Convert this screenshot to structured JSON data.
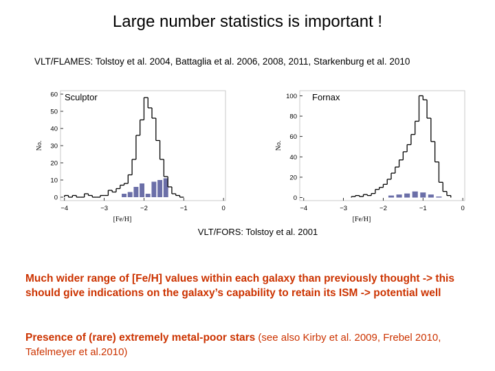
{
  "slide": {
    "title": "Large number statistics is important !",
    "references": "VLT/FLAMES: Tolstoy et al. 2004, Battaglia et al. 2006, 2008, 2011, Starkenburg et al. 2010",
    "caption": "VLT/FORS: Tolstoy et al. 2001",
    "paragraph1": "Much wider range of [Fe/H] values within each galaxy than previously thought -> this should give indications on the galaxy’s capability to retain its ISM -> potential well",
    "paragraph2_bold": "Presence of (rare) extremely metal-poor stars",
    "paragraph2_normal": " (see also Kirby et al. 2009, Frebel 2010, Tafelmeyer et al.2010)"
  },
  "colors": {
    "text_accent": "#cc3300",
    "bar_fill": "#6b6fa8",
    "line": "#000000"
  },
  "chart_data": [
    {
      "type": "bar",
      "title": "Sculptor",
      "xlabel": "[Fe/H]",
      "ylabel": "No.",
      "xlim": [
        -4.1,
        0.05
      ],
      "ylim": [
        -2,
        62
      ],
      "xticks": [
        -4,
        -3,
        -2,
        -1,
        0
      ],
      "xtick_labels": [
        "−4",
        "−3",
        "−2",
        "−1",
        "0"
      ],
      "yticks": [
        0,
        10,
        20,
        30,
        40,
        50,
        60
      ],
      "histogram": {
        "name": "VLT/FLAMES",
        "edges": [
          -4.0,
          -3.9,
          -3.8,
          -3.7,
          -3.6,
          -3.5,
          -3.4,
          -3.3,
          -3.2,
          -3.1,
          -3.0,
          -2.9,
          -2.8,
          -2.7,
          -2.6,
          -2.5,
          -2.4,
          -2.3,
          -2.2,
          -2.1,
          -2.0,
          -1.9,
          -1.8,
          -1.7,
          -1.6,
          -1.5,
          -1.4,
          -1.3,
          -1.2,
          -1.1,
          -1.0
        ],
        "values": [
          1,
          0,
          1,
          0,
          0,
          2,
          1,
          0,
          0,
          1,
          1,
          4,
          3,
          5,
          7,
          8,
          13,
          22,
          36,
          45,
          58,
          52,
          46,
          33,
          22,
          12,
          6,
          2,
          1,
          0
        ]
      },
      "bars": {
        "name": "VLT/FORS",
        "width": 0.12,
        "x": [
          -2.5,
          -2.35,
          -2.2,
          -2.05,
          -1.9,
          -1.75,
          -1.6,
          -1.45
        ],
        "values": [
          2,
          3,
          6,
          8,
          2,
          9,
          10,
          11
        ]
      }
    },
    {
      "type": "bar",
      "title": "Fornax",
      "xlabel": "[Fe/H]",
      "ylabel": "No.",
      "xlim": [
        -4.1,
        0.05
      ],
      "ylim": [
        -3,
        105
      ],
      "xticks": [
        -4,
        -3,
        -2,
        -1,
        0
      ],
      "xtick_labels": [
        "−4",
        "−3",
        "−2",
        "−1",
        "0"
      ],
      "yticks": [
        0,
        20,
        40,
        60,
        80,
        100
      ],
      "histogram": {
        "name": "VLT/FLAMES",
        "edges": [
          -2.8,
          -2.7,
          -2.6,
          -2.5,
          -2.4,
          -2.3,
          -2.2,
          -2.1,
          -2.0,
          -1.9,
          -1.8,
          -1.7,
          -1.6,
          -1.5,
          -1.4,
          -1.3,
          -1.2,
          -1.1,
          -1.0,
          -0.9,
          -0.8,
          -0.7,
          -0.6,
          -0.5,
          -0.4,
          -0.3
        ],
        "values": [
          1,
          2,
          1,
          3,
          2,
          4,
          8,
          10,
          13,
          18,
          24,
          30,
          37,
          45,
          52,
          62,
          75,
          100,
          96,
          78,
          55,
          35,
          15,
          6,
          2
        ]
      },
      "bars": {
        "name": "VLT/FORS",
        "width": 0.14,
        "x": [
          -1.8,
          -1.6,
          -1.4,
          -1.2,
          -1.0,
          -0.8,
          -0.6
        ],
        "values": [
          2,
          3,
          4,
          6,
          5,
          3,
          1
        ]
      }
    }
  ]
}
